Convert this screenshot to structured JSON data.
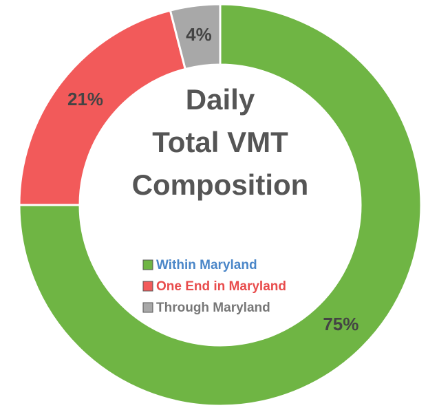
{
  "chart_data": {
    "type": "donut",
    "title": [
      "Daily",
      "Total VMT",
      "Composition"
    ],
    "categories": [
      "Within Maryland",
      "One End in Maryland",
      "Through Maryland"
    ],
    "values": [
      75,
      21,
      4
    ],
    "value_labels": [
      "75%",
      "21%",
      "4%"
    ],
    "colors": [
      "#6fb544",
      "#f25a5a",
      "#a8a8a8"
    ],
    "legend_text_colors": [
      "#4a86c8",
      "#e84c4c",
      "#777777"
    ]
  }
}
